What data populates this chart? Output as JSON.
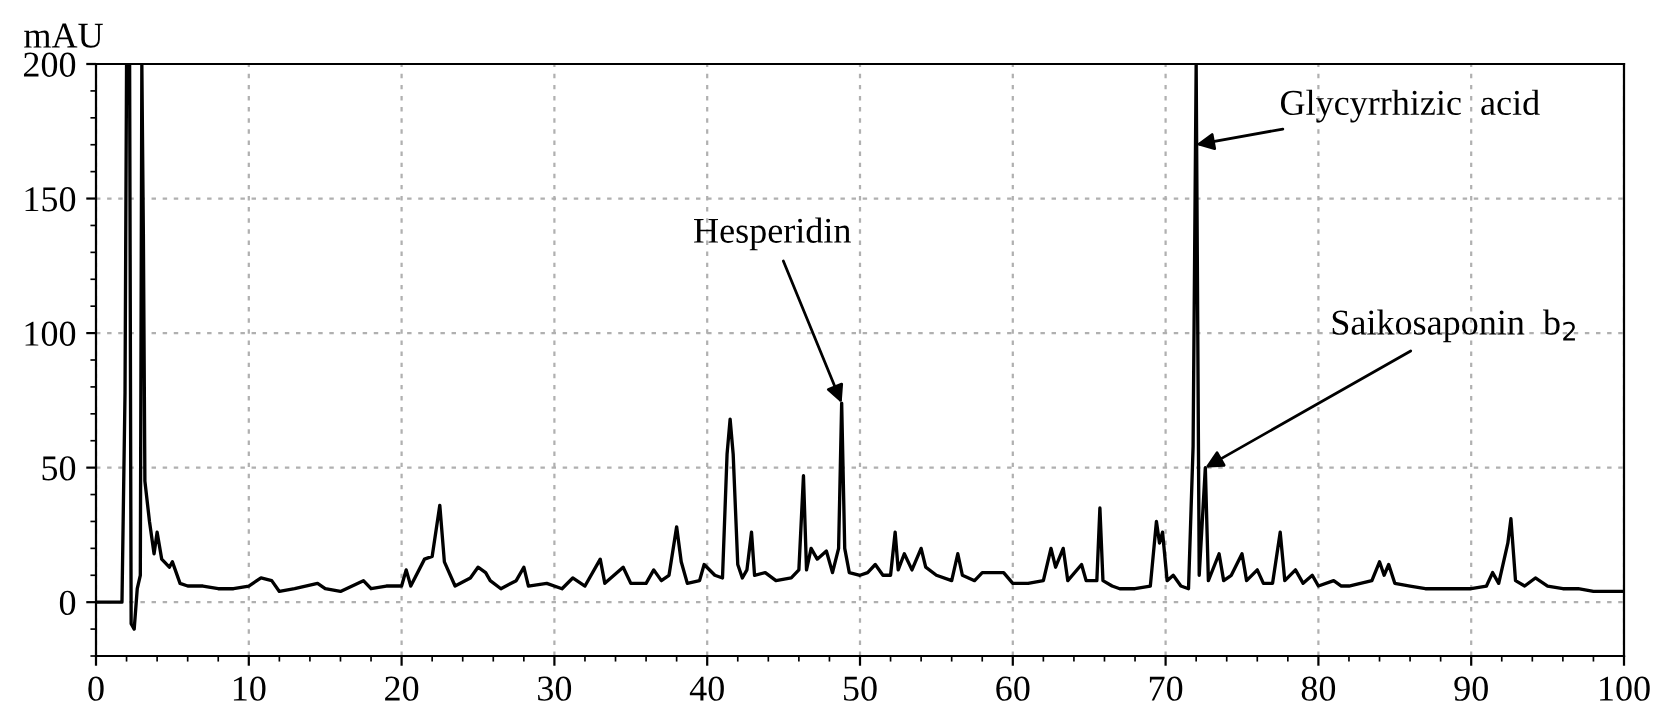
{
  "chart_data": {
    "type": "line",
    "ylabel": "mAU",
    "color": "#000000",
    "x": [
      0,
      1.7,
      1.9,
      2.0,
      2.2,
      2.3,
      2.5,
      2.7,
      2.9,
      3.0,
      3.1,
      3.2,
      3.5,
      3.8,
      4.0,
      4.3,
      4.8,
      5.0,
      5.5,
      6,
      7,
      8,
      9,
      10,
      10.8,
      11.5,
      12,
      13,
      14.5,
      15,
      16,
      17.5,
      18,
      19,
      20,
      20.3,
      20.6,
      21.5,
      22,
      22.5,
      22.8,
      23.5,
      24.5,
      25,
      25.5,
      25.8,
      26.5,
      27.5,
      28,
      28.3,
      29.5,
      30.5,
      31.2,
      32,
      33,
      33.3,
      34.5,
      35,
      36,
      36.5,
      37,
      37.5,
      38,
      38.3,
      38.7,
      39.5,
      39.8,
      40.5,
      41,
      41.3,
      41.5,
      41.7,
      42,
      42.3,
      42.6,
      42.9,
      43.1,
      43.8,
      44.5,
      45.5,
      46,
      46.3,
      46.5,
      46.8,
      47.2,
      47.8,
      48.2,
      48.6,
      48.8,
      49,
      49.3,
      50,
      50.5,
      51,
      51.5,
      52,
      52.3,
      52.5,
      52.9,
      53.4,
      54,
      54.3,
      55,
      56,
      56.4,
      56.7,
      57.5,
      58,
      59.4,
      60,
      61,
      62,
      62.5,
      62.8,
      63.3,
      63.6,
      64.5,
      64.8,
      65.5,
      65.7,
      65.9,
      66.5,
      67,
      68,
      69,
      69.4,
      69.6,
      69.8,
      70.1,
      70.5,
      71,
      71.5,
      71.8,
      72.0,
      72.2,
      72.6,
      72.8,
      73.5,
      73.8,
      74.3,
      75,
      75.3,
      76,
      76.4,
      77,
      77.5,
      77.8,
      78.5,
      79,
      79.6,
      80,
      81,
      81.5,
      82,
      83.5,
      84,
      84.3,
      84.6,
      85,
      86,
      87,
      88,
      89,
      90,
      91,
      91.4,
      91.8,
      92.4,
      92.6,
      92.9,
      93.5,
      94.2,
      95,
      96,
      97,
      98,
      100
    ],
    "values": [
      0,
      0,
      78,
      200,
      200,
      -8,
      -10,
      5,
      10,
      200,
      137,
      45,
      30,
      18,
      26,
      16,
      13,
      15,
      7,
      6,
      6,
      5,
      5,
      6,
      9,
      8,
      4,
      5,
      7,
      5,
      4,
      8,
      5,
      6,
      6,
      12,
      6,
      16,
      17,
      36,
      15,
      6,
      9,
      13,
      11,
      8,
      5,
      8,
      13,
      6,
      7,
      5,
      9,
      6,
      16,
      7,
      13,
      7,
      7,
      12,
      8,
      10,
      28,
      15,
      7,
      8,
      14,
      10,
      9,
      55,
      68,
      55,
      14,
      9,
      12,
      26,
      10,
      11,
      8,
      9,
      12,
      47,
      12,
      20,
      16,
      19,
      11,
      20,
      74,
      20,
      11,
      10,
      11,
      14,
      10,
      10,
      26,
      12,
      18,
      12,
      20,
      13,
      10,
      8,
      18,
      10,
      8,
      11,
      11,
      7,
      7,
      8,
      20,
      13,
      20,
      8,
      14,
      8,
      8,
      35,
      8,
      6,
      5,
      5,
      6,
      30,
      22,
      26,
      8,
      10,
      6,
      5,
      58,
      200,
      10,
      50,
      8,
      18,
      8,
      10,
      18,
      8,
      12,
      7,
      7,
      26,
      8,
      12,
      7,
      10,
      6,
      8,
      6,
      6,
      8,
      15,
      10,
      14,
      7,
      6,
      5,
      5,
      5,
      5,
      6,
      11,
      7,
      22,
      31,
      8,
      6,
      9,
      6,
      5,
      5,
      4,
      4
    ],
    "xlim": [
      0,
      100
    ],
    "ylim": [
      -20,
      200
    ],
    "xticks": [
      0,
      10,
      20,
      30,
      40,
      50,
      60,
      70,
      80,
      90,
      100
    ],
    "yticks": [
      0,
      50,
      100,
      150,
      200
    ],
    "grid": true,
    "legend": false,
    "line_style": "solid",
    "marker": "none",
    "annotations": [
      {
        "text": "Hesperidin",
        "x": 48.8,
        "y": 74
      },
      {
        "text": "Glycyrrhizic  acid",
        "x": 72.0,
        "y": 170
      },
      {
        "text": "Saikosaponin  b$_{2}$",
        "x": 72.6,
        "y": 50
      }
    ]
  }
}
